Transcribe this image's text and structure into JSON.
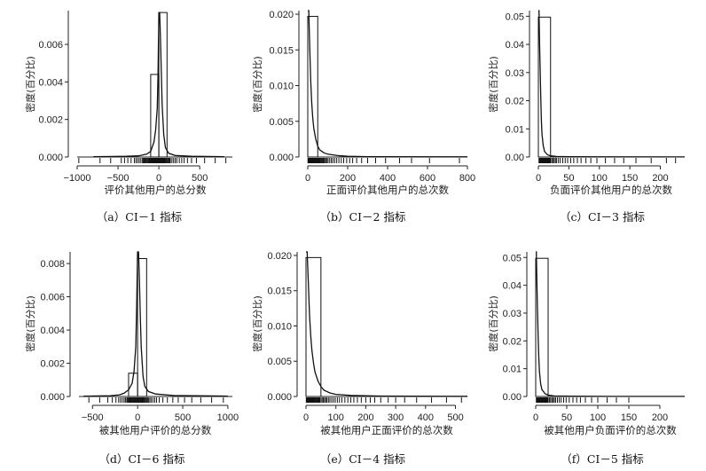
{
  "figure": {
    "panels": [
      {
        "id": "a",
        "caption": "（a）CI－1 指标",
        "chart_data": {
          "type": "histogram+density",
          "xlabel": "评价其他用户的总分数",
          "ylabel": "密度(百分比)",
          "xlim": [
            -1000,
            900
          ],
          "ylim": [
            0,
            0.0078
          ],
          "xticks": [
            -1000,
            -500,
            0,
            500
          ],
          "xtick_labels": [
            "−1000",
            "−500",
            "0",
            "500"
          ],
          "yticks": [
            0.0,
            0.002,
            0.004,
            0.006
          ],
          "ytick_labels": [
            "0.000",
            "0.002",
            "0.004",
            "0.006"
          ],
          "bins": [
            {
              "x0": -100,
              "x1": 0,
              "y": 0.0044
            },
            {
              "x0": 0,
              "x1": 100,
              "y": 0.0077
            }
          ],
          "density": [
            [
              -800,
              2e-05
            ],
            [
              -400,
              4e-05
            ],
            [
              -250,
              6e-05
            ],
            [
              -150,
              0.00015
            ],
            [
              -100,
              0.0003
            ],
            [
              -60,
              0.0008
            ],
            [
              -40,
              0.0014
            ],
            [
              -20,
              0.0026
            ],
            [
              -10,
              0.0045
            ],
            [
              0,
              0.0077
            ],
            [
              10,
              0.0077
            ],
            [
              20,
              0.0064
            ],
            [
              30,
              0.0045
            ],
            [
              40,
              0.0028
            ],
            [
              60,
              0.0012
            ],
            [
              80,
              0.0005
            ],
            [
              120,
              0.0002
            ],
            [
              200,
              8e-05
            ],
            [
              400,
              4e-05
            ],
            [
              800,
              2e-05
            ]
          ],
          "rug": [
            -980,
            -720,
            -590,
            -460,
            -420,
            -380,
            -340,
            -300,
            -280,
            -260,
            -240,
            -220,
            -200,
            -190,
            -180,
            -170,
            -160,
            -150,
            -140,
            -130,
            -120,
            -110,
            -100,
            -95,
            -90,
            -85,
            -80,
            -75,
            -70,
            -65,
            -60,
            -55,
            -50,
            -45,
            -40,
            -35,
            -30,
            -25,
            -20,
            -15,
            -10,
            -5,
            0,
            5,
            10,
            15,
            20,
            25,
            30,
            35,
            40,
            45,
            50,
            55,
            60,
            65,
            70,
            75,
            80,
            90,
            100,
            110,
            120,
            130,
            140,
            160,
            180,
            200,
            220,
            250,
            280,
            310,
            350,
            400,
            460,
            560,
            690,
            820
          ]
        }
      },
      {
        "id": "b",
        "caption": "（b）CI－2 指标",
        "chart_data": {
          "type": "histogram+density",
          "xlabel": "正面评价其他用户的总次数",
          "ylabel": "密度(百分比)",
          "xlim": [
            0,
            800
          ],
          "ylim": [
            0,
            0.0205
          ],
          "xticks": [
            0,
            200,
            400,
            600,
            800
          ],
          "xtick_labels": [
            "0",
            "200",
            "400",
            "600",
            "800"
          ],
          "yticks": [
            0.0,
            0.005,
            0.01,
            0.015,
            0.02
          ],
          "ytick_labels": [
            "0.000",
            "0.005",
            "0.010",
            "0.015",
            "0.020"
          ],
          "bins": [
            {
              "x0": 0,
              "x1": 50,
              "y": 0.0197
            }
          ],
          "density": [
            [
              0,
              0.0205
            ],
            [
              5,
              0.0205
            ],
            [
              10,
              0.015
            ],
            [
              15,
              0.0105
            ],
            [
              20,
              0.0075
            ],
            [
              25,
              0.0055
            ],
            [
              30,
              0.004
            ],
            [
              40,
              0.0025
            ],
            [
              50,
              0.0015
            ],
            [
              60,
              0.001
            ],
            [
              80,
              0.0006
            ],
            [
              100,
              0.0004
            ],
            [
              150,
              0.0002
            ],
            [
              200,
              0.0001
            ],
            [
              300,
              5e-05
            ],
            [
              800,
              2e-05
            ]
          ],
          "rug": [
            1,
            3,
            5,
            7,
            9,
            11,
            13,
            15,
            17,
            19,
            21,
            23,
            25,
            27,
            29,
            31,
            33,
            35,
            38,
            41,
            44,
            47,
            50,
            53,
            56,
            60,
            64,
            68,
            72,
            76,
            80,
            85,
            90,
            96,
            102,
            110,
            118,
            126,
            135,
            145,
            156,
            168,
            180,
            195,
            210,
            225,
            245,
            270,
            300,
            340,
            390,
            460,
            520,
            610,
            760
          ]
        }
      },
      {
        "id": "c",
        "caption": "（c）CI－3 指标",
        "chart_data": {
          "type": "histogram+density",
          "xlabel": "负面评价其他用户的总次数",
          "ylabel": "密度(百分比)",
          "xlim": [
            0,
            240
          ],
          "ylim": [
            0,
            0.052
          ],
          "xticks": [
            0,
            50,
            100,
            150,
            200
          ],
          "xtick_labels": [
            "0",
            "50",
            "100",
            "150",
            "200"
          ],
          "yticks": [
            0.0,
            0.01,
            0.02,
            0.03,
            0.04,
            0.05
          ],
          "ytick_labels": [
            "0.00",
            "0.01",
            "0.02",
            "0.03",
            "0.04",
            "0.05"
          ],
          "bins": [
            {
              "x0": 0,
              "x1": 20,
              "y": 0.0497
            }
          ],
          "density": [
            [
              0,
              0.052
            ],
            [
              1,
              0.052
            ],
            [
              2,
              0.04
            ],
            [
              3,
              0.03
            ],
            [
              4,
              0.02
            ],
            [
              5,
              0.013
            ],
            [
              6,
              0.008
            ],
            [
              8,
              0.004
            ],
            [
              10,
              0.002
            ],
            [
              15,
              0.0008
            ],
            [
              20,
              0.0004
            ],
            [
              30,
              0.0002
            ],
            [
              50,
              0.0001
            ],
            [
              100,
              5e-05
            ],
            [
              240,
              2e-05
            ]
          ],
          "rug": [
            1,
            2,
            3,
            4,
            5,
            6,
            7,
            8,
            9,
            10,
            11,
            12,
            13,
            14,
            15,
            16,
            17,
            18,
            19,
            20,
            22,
            24,
            26,
            28,
            30,
            33,
            36,
            40,
            44,
            48,
            53,
            58,
            64,
            70,
            78,
            86,
            96,
            110,
            125,
            140,
            160,
            185,
            210,
            225
          ]
        }
      },
      {
        "id": "d",
        "caption": "（d）CI－6 指标",
        "chart_data": {
          "type": "histogram+density",
          "xlabel": "被其他用户评价的总分数",
          "ylabel": "密度(百分比)",
          "xlim": [
            -650,
            1050
          ],
          "ylim": [
            0,
            0.0087
          ],
          "xticks": [
            -500,
            0,
            500,
            1000
          ],
          "xtick_labels": [
            "−500",
            "0",
            "500",
            "1000"
          ],
          "yticks": [
            0.0,
            0.002,
            0.004,
            0.006,
            0.008
          ],
          "ytick_labels": [
            "0.000",
            "0.002",
            "0.004",
            "0.006",
            "0.008"
          ],
          "bins": [
            {
              "x0": -100,
              "x1": 0,
              "y": 0.0014
            },
            {
              "x0": 0,
              "x1": 100,
              "y": 0.0083
            }
          ],
          "density": [
            [
              -600,
              2e-05
            ],
            [
              -300,
              5e-05
            ],
            [
              -200,
              0.0001
            ],
            [
              -150,
              0.0002
            ],
            [
              -100,
              0.0004
            ],
            [
              -60,
              0.0008
            ],
            [
              -40,
              0.0015
            ],
            [
              -20,
              0.003
            ],
            [
              -10,
              0.0055
            ],
            [
              0,
              0.0087
            ],
            [
              10,
              0.0087
            ],
            [
              20,
              0.007
            ],
            [
              30,
              0.0048
            ],
            [
              40,
              0.003
            ],
            [
              60,
              0.0012
            ],
            [
              80,
              0.0006
            ],
            [
              120,
              0.0003
            ],
            [
              200,
              0.00015
            ],
            [
              400,
              6e-05
            ],
            [
              1000,
              2e-05
            ]
          ],
          "rug": [
            -540,
            -420,
            -330,
            -280,
            -240,
            -210,
            -190,
            -170,
            -150,
            -135,
            -120,
            -110,
            -100,
            -90,
            -80,
            -72,
            -64,
            -56,
            -48,
            -40,
            -32,
            -24,
            -16,
            -8,
            0,
            8,
            16,
            24,
            32,
            40,
            48,
            56,
            64,
            72,
            80,
            90,
            100,
            110,
            120,
            135,
            150,
            170,
            190,
            210,
            240,
            280,
            330,
            390,
            450,
            520,
            600,
            700,
            820,
            950
          ]
        }
      },
      {
        "id": "e",
        "caption": "（e）CI－4 指标",
        "chart_data": {
          "type": "histogram+density",
          "xlabel": "被其他用户正面评价的总次数",
          "ylabel": "密度(百分比)",
          "xlim": [
            0,
            540
          ],
          "ylim": [
            0,
            0.0205
          ],
          "xticks": [
            0,
            100,
            200,
            300,
            400,
            500
          ],
          "xtick_labels": [
            "0",
            "100",
            "200",
            "300",
            "400",
            "500"
          ],
          "yticks": [
            0.0,
            0.005,
            0.01,
            0.015,
            0.02
          ],
          "ytick_labels": [
            "0.000",
            "0.005",
            "0.010",
            "0.015",
            "0.020"
          ],
          "bins": [
            {
              "x0": 0,
              "x1": 50,
              "y": 0.0197
            }
          ],
          "density": [
            [
              0,
              0.0205
            ],
            [
              4,
              0.0205
            ],
            [
              8,
              0.016
            ],
            [
              12,
              0.0115
            ],
            [
              16,
              0.0085
            ],
            [
              20,
              0.0065
            ],
            [
              25,
              0.0048
            ],
            [
              30,
              0.0035
            ],
            [
              40,
              0.0022
            ],
            [
              50,
              0.0014
            ],
            [
              60,
              0.0009
            ],
            [
              80,
              0.0005
            ],
            [
              100,
              0.0003
            ],
            [
              150,
              0.00015
            ],
            [
              250,
              6e-05
            ],
            [
              540,
              2e-05
            ]
          ],
          "rug": [
            1,
            3,
            5,
            7,
            9,
            11,
            13,
            15,
            17,
            19,
            21,
            23,
            25,
            27,
            29,
            31,
            34,
            37,
            40,
            43,
            46,
            50,
            54,
            58,
            62,
            66,
            70,
            75,
            80,
            86,
            92,
            98,
            105,
            112,
            120,
            130,
            140,
            150,
            160,
            172,
            185,
            200,
            215,
            230,
            250,
            275,
            300,
            330,
            370,
            420,
            470,
            520
          ]
        }
      },
      {
        "id": "f",
        "caption": "（f）CI－5 指标",
        "chart_data": {
          "type": "histogram+density",
          "xlabel": "被其他用户负面评价的总次数",
          "ylabel": "密度(百分比)",
          "xlim": [
            0,
            240
          ],
          "ylim": [
            0,
            0.052
          ],
          "xticks": [
            0,
            50,
            100,
            150,
            200
          ],
          "xtick_labels": [
            "0",
            "50",
            "100",
            "150",
            "200"
          ],
          "yticks": [
            0.0,
            0.01,
            0.02,
            0.03,
            0.04,
            0.05
          ],
          "ytick_labels": [
            "0.00",
            "0.01",
            "0.02",
            "0.03",
            "0.04",
            "0.05"
          ],
          "bins": [
            {
              "x0": 0,
              "x1": 20,
              "y": 0.0497
            }
          ],
          "density": [
            [
              0,
              0.052
            ],
            [
              1,
              0.052
            ],
            [
              2,
              0.04
            ],
            [
              3,
              0.03
            ],
            [
              4,
              0.021
            ],
            [
              5,
              0.014
            ],
            [
              6,
              0.009
            ],
            [
              8,
              0.0045
            ],
            [
              10,
              0.0025
            ],
            [
              15,
              0.001
            ],
            [
              20,
              0.0005
            ],
            [
              30,
              0.0002
            ],
            [
              60,
              0.0001
            ],
            [
              120,
              4e-05
            ],
            [
              240,
              2e-05
            ]
          ],
          "rug": [
            1,
            2,
            3,
            4,
            5,
            6,
            7,
            8,
            9,
            10,
            11,
            12,
            13,
            14,
            15,
            16,
            17,
            18,
            19,
            20,
            22,
            24,
            26,
            28,
            30,
            32,
            35,
            38,
            41,
            45,
            49,
            54,
            60,
            66,
            72,
            80,
            90,
            100,
            115,
            130,
            150
          ]
        }
      }
    ]
  }
}
